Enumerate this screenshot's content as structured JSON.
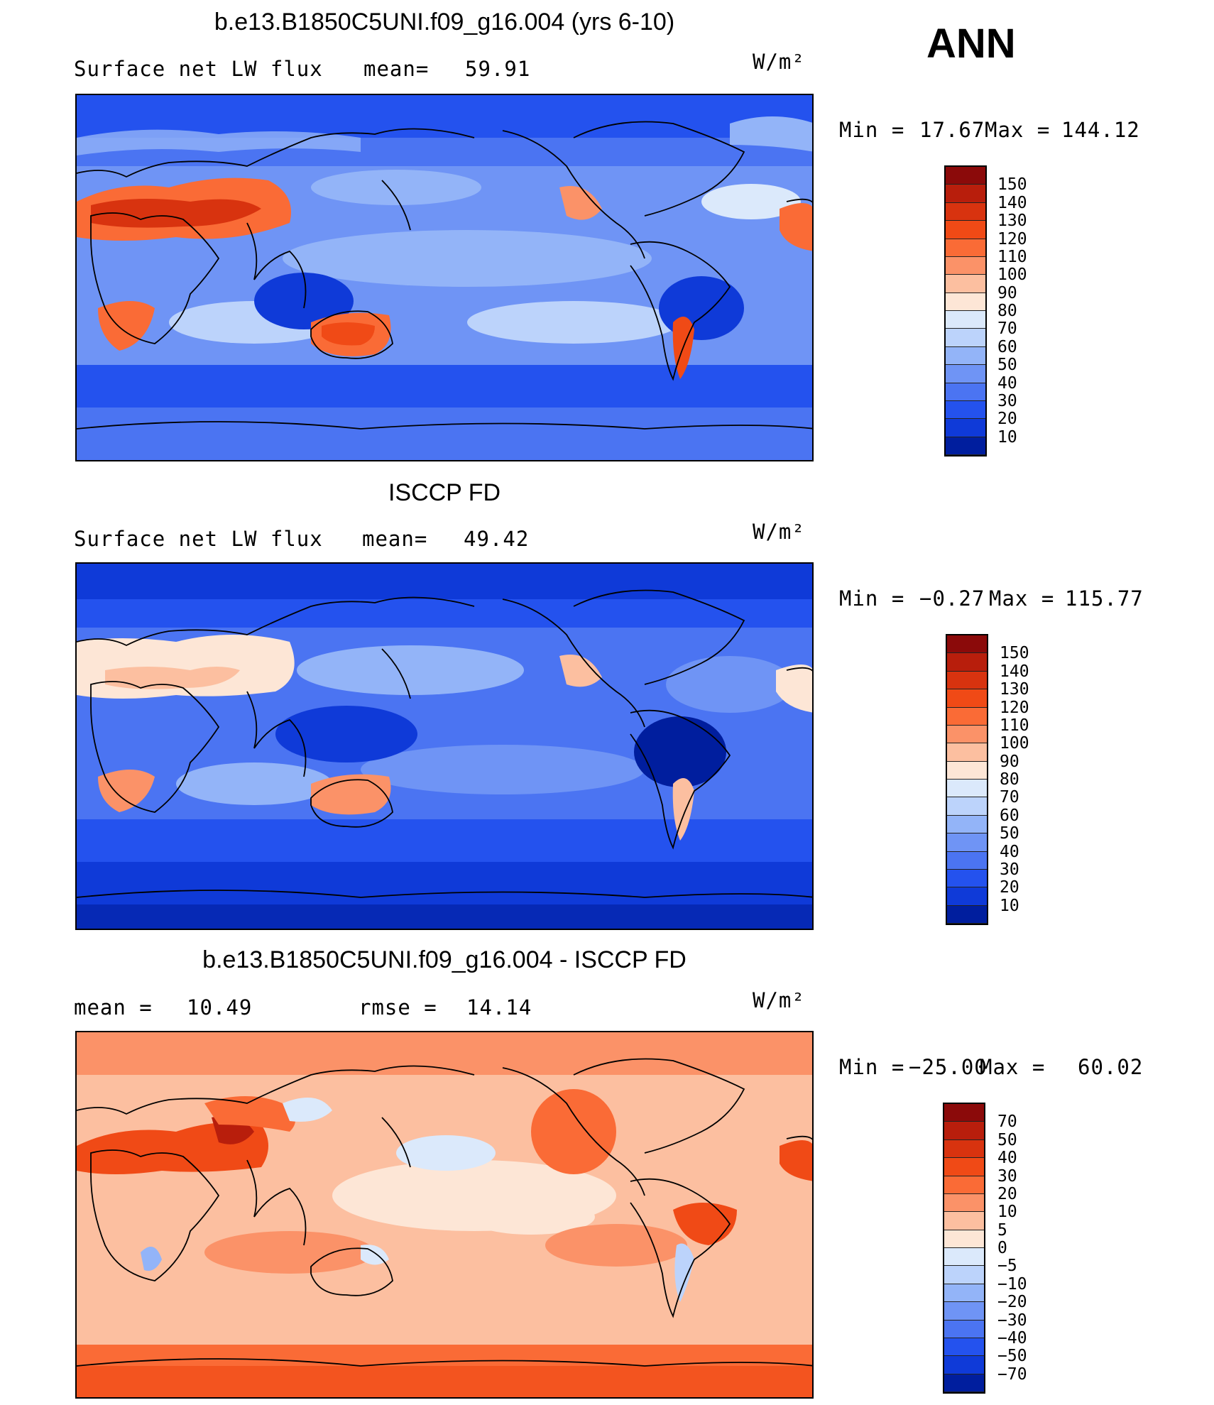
{
  "season": "ANN",
  "units": "W/m²",
  "panels": [
    {
      "id": "model",
      "title": "b.e13.B1850C5UNI.f09_g16.004 (yrs 6-10)",
      "left_label": "Surface net LW flux",
      "stat1_label": "mean=",
      "stat1_value": "59.91",
      "stat2_label": "",
      "stat2_value": "",
      "min_label": "Min  =",
      "min_value": "17.67",
      "max_label": "Max  =",
      "max_value": "144.12",
      "colorbar_labels": [
        "150",
        "140",
        "130",
        "120",
        "110",
        "100",
        "90",
        "80",
        "70",
        "60",
        "50",
        "40",
        "30",
        "20",
        "10"
      ],
      "colorbar_colors": [
        "#8b0a0a",
        "#b81e0c",
        "#d8330f",
        "#f04a16",
        "#fa6b36",
        "#fb9268",
        "#fcbfa0",
        "#fde6d6",
        "#dbe9fb",
        "#bcd3fb",
        "#93b4f8",
        "#6f94f5",
        "#4b74f2",
        "#2452ee",
        "#0f3ad8",
        "#001e9e"
      ]
    },
    {
      "id": "obs",
      "title": "ISCCP FD",
      "left_label": "Surface net LW flux",
      "stat1_label": "mean=",
      "stat1_value": "49.42",
      "stat2_label": "",
      "stat2_value": "",
      "min_label": "Min  =",
      "min_value": "−0.27",
      "max_label": "Max  =",
      "max_value": "115.77",
      "colorbar_labels": [
        "150",
        "140",
        "130",
        "120",
        "110",
        "100",
        "90",
        "80",
        "70",
        "60",
        "50",
        "40",
        "30",
        "20",
        "10"
      ],
      "colorbar_colors": [
        "#8b0a0a",
        "#b81e0c",
        "#d8330f",
        "#f04a16",
        "#fa6b36",
        "#fb9268",
        "#fcbfa0",
        "#fde6d6",
        "#dbe9fb",
        "#bcd3fb",
        "#93b4f8",
        "#6f94f5",
        "#4b74f2",
        "#2452ee",
        "#0f3ad8",
        "#001e9e"
      ]
    },
    {
      "id": "diff",
      "title": "b.e13.B1850C5UNI.f09_g16.004 - ISCCP FD",
      "left_label": "mean  =",
      "stat1_label": "",
      "stat1_value": "10.49",
      "stat2_label": "rmse  =",
      "stat2_value": "14.14",
      "min_label": "Min  =",
      "min_value": "−25.00",
      "max_label": "Max  =",
      "max_value": "60.02",
      "colorbar_labels": [
        "70",
        "50",
        "40",
        "30",
        "20",
        "10",
        "5",
        "0",
        "−5",
        "−10",
        "−20",
        "−30",
        "−40",
        "−50",
        "−70"
      ],
      "colorbar_colors": [
        "#8b0a0a",
        "#b81e0c",
        "#d8330f",
        "#f04a16",
        "#fa6b36",
        "#fb9268",
        "#fcbfa0",
        "#fde6d6",
        "#dbe9fb",
        "#bcd3fb",
        "#93b4f8",
        "#6f94f5",
        "#4b74f2",
        "#2452ee",
        "#0f3ad8",
        "#001e9e"
      ]
    }
  ]
}
